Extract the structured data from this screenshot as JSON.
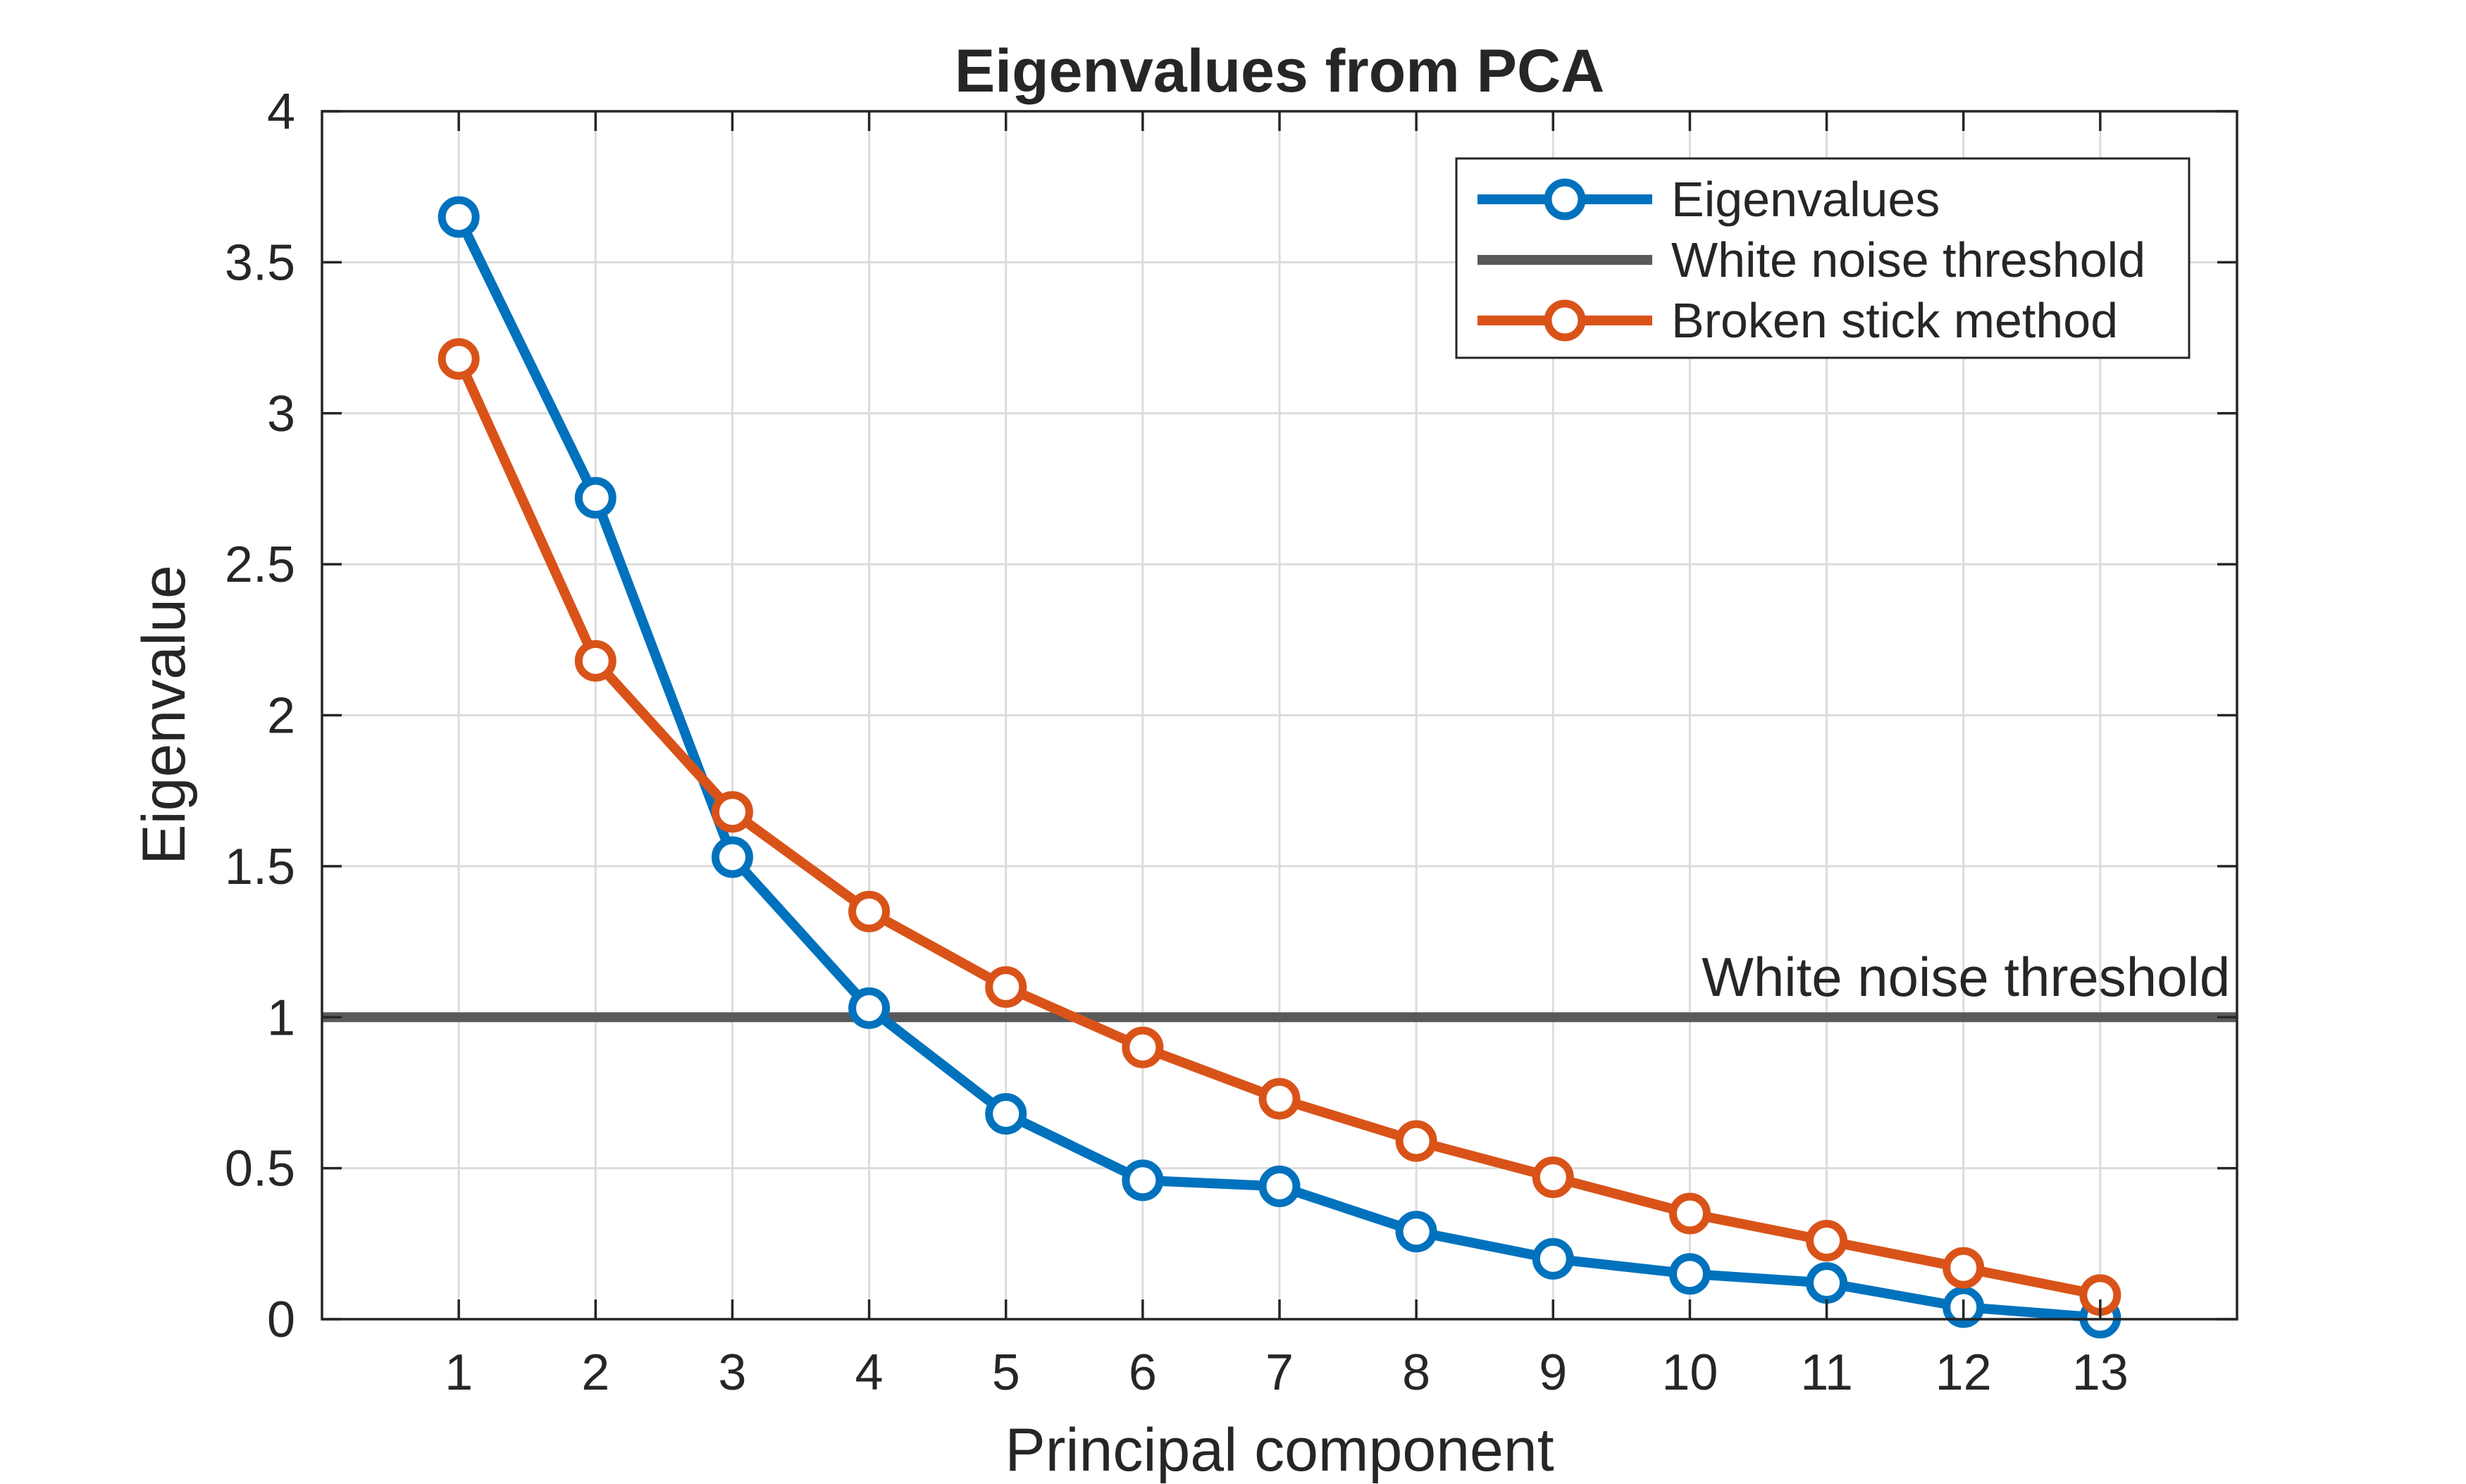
{
  "chart_data": {
    "type": "line",
    "title": "Eigenvalues from PCA",
    "xlabel": "Principal component",
    "ylabel": "Eigenvalue",
    "x": [
      1,
      2,
      3,
      4,
      5,
      6,
      7,
      8,
      9,
      10,
      11,
      12,
      13
    ],
    "xlim": [
      0,
      14
    ],
    "ylim": [
      0,
      4
    ],
    "xticks": [
      1,
      2,
      3,
      4,
      5,
      6,
      7,
      8,
      9,
      10,
      11,
      12,
      13
    ],
    "yticks": [
      0,
      0.5,
      1,
      1.5,
      2,
      2.5,
      3,
      3.5,
      4
    ],
    "ytick_labels": [
      "0",
      "0.5",
      "1",
      "1.5",
      "2",
      "2.5",
      "3",
      "3.5",
      "4"
    ],
    "grid": true,
    "legend_position": "top-right",
    "series": [
      {
        "name": "Eigenvalues",
        "color": "#0072BD",
        "marker": "circle",
        "values": [
          3.65,
          2.72,
          1.53,
          1.03,
          0.68,
          0.46,
          0.44,
          0.29,
          0.2,
          0.15,
          0.12,
          0.04,
          0.005
        ]
      },
      {
        "name": "White noise threshold",
        "color": "#595959",
        "marker": "none",
        "type": "hline",
        "value": 1
      },
      {
        "name": "Broken stick method",
        "color": "#D95319",
        "marker": "circle",
        "values": [
          3.18,
          2.18,
          1.68,
          1.35,
          1.1,
          0.9,
          0.73,
          0.59,
          0.47,
          0.35,
          0.26,
          0.17,
          0.08
        ]
      }
    ],
    "annotations": [
      {
        "text": "White noise threshold",
        "x": 13.95,
        "y": 1.07,
        "anchor": "end"
      }
    ]
  }
}
